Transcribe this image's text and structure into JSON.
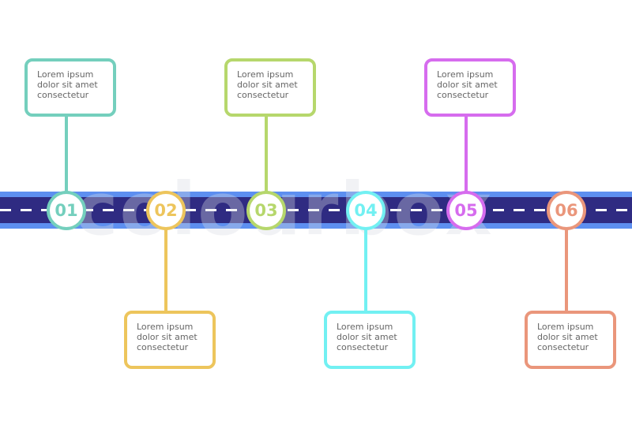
{
  "watermark": "colourbox",
  "road": {
    "dark_color": "#2f2b82",
    "light_color": "#5d8ff0"
  },
  "steps": [
    {
      "number": "01",
      "color": "#74cfbd",
      "position": "top",
      "text": [
        "Lorem  ipsum",
        "dolor sit amet",
        "consectetur"
      ]
    },
    {
      "number": "02",
      "color": "#edc55c",
      "position": "bottom",
      "text": [
        "Lorem  ipsum",
        "dolor sit amet",
        "consectetur"
      ]
    },
    {
      "number": "03",
      "color": "#b6d76c",
      "position": "top",
      "text": [
        "Lorem  ipsum",
        "dolor sit amet",
        "consectetur"
      ]
    },
    {
      "number": "04",
      "color": "#72f0f2",
      "position": "bottom",
      "text": [
        "Lorem  ipsum",
        "dolor sit amet",
        "consectetur"
      ]
    },
    {
      "number": "05",
      "color": "#d66cee",
      "position": "top",
      "text": [
        "Lorem  ipsum",
        "dolor sit amet",
        "consectetur"
      ]
    },
    {
      "number": "06",
      "color": "#ea967b",
      "position": "bottom",
      "text": [
        "Lorem  ipsum",
        "dolor sit amet",
        "consectetur"
      ]
    }
  ]
}
